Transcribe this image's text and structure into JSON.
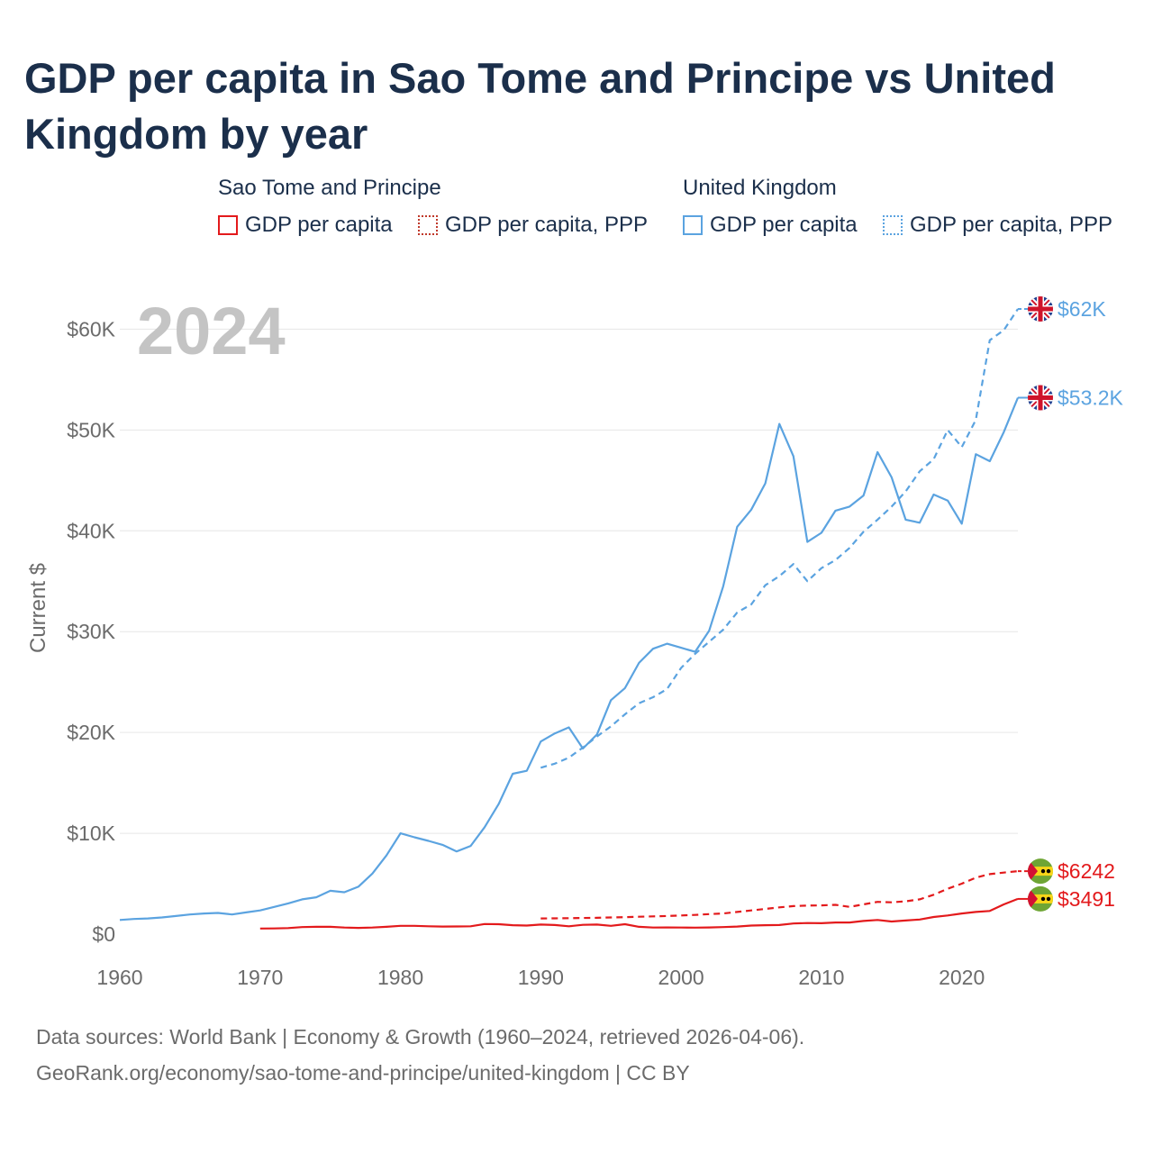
{
  "title": "GDP per capita in Sao Tome and Principe vs United Kingdom by year",
  "legend": {
    "groups": [
      {
        "name": "Sao Tome and Principe",
        "items": [
          {
            "label": "GDP per capita",
            "color": "#e31a1c",
            "style": "solid"
          },
          {
            "label": "GDP per capita, PPP",
            "color": "#c0392b",
            "style": "dotted"
          }
        ]
      },
      {
        "name": "United Kingdom",
        "items": [
          {
            "label": "GDP per capita",
            "color": "#5ba3e0",
            "style": "solid"
          },
          {
            "label": "GDP per capita, PPP",
            "color": "#5ba3e0",
            "style": "dotted"
          }
        ]
      }
    ]
  },
  "year_label": "2024",
  "footer": {
    "line1": "Data sources: World Bank | Economy & Growth (1960–2024, retrieved 2026-04-06).",
    "line2": "GeoRank.org/economy/sao-tome-and-principe/united-kingdom | CC BY"
  },
  "chart_data": {
    "type": "line",
    "title": "GDP per capita in Sao Tome and Principe vs United Kingdom by year",
    "ylabel": "Current $",
    "xlabel": "",
    "xlim": [
      1960,
      2024
    ],
    "ylim": [
      0,
      62000
    ],
    "x_ticks": [
      1960,
      1970,
      1980,
      1990,
      2000,
      2010,
      2020
    ],
    "y_ticks": [
      {
        "value": 0,
        "label": "$0"
      },
      {
        "value": 10000,
        "label": "$10K"
      },
      {
        "value": 20000,
        "label": "$20K"
      },
      {
        "value": 30000,
        "label": "$30K"
      },
      {
        "value": 40000,
        "label": "$40K"
      },
      {
        "value": 50000,
        "label": "$50K"
      },
      {
        "value": 60000,
        "label": "$60K"
      }
    ],
    "series": [
      {
        "name": "United Kingdom GDP per capita",
        "color": "#5ba3e0",
        "dash": "solid",
        "end_label": "$53.2K",
        "flag": "uk",
        "x": [
          1960,
          1961,
          1962,
          1963,
          1964,
          1965,
          1966,
          1967,
          1968,
          1969,
          1970,
          1971,
          1972,
          1973,
          1974,
          1975,
          1976,
          1977,
          1978,
          1979,
          1980,
          1981,
          1982,
          1983,
          1984,
          1985,
          1986,
          1987,
          1988,
          1989,
          1990,
          1991,
          1992,
          1993,
          1994,
          1995,
          1996,
          1997,
          1998,
          1999,
          2000,
          2001,
          2002,
          2003,
          2004,
          2005,
          2006,
          2007,
          2008,
          2009,
          2010,
          2011,
          2012,
          2013,
          2014,
          2015,
          2016,
          2017,
          2018,
          2019,
          2020,
          2021,
          2022,
          2023,
          2024
        ],
        "values": [
          1400,
          1500,
          1550,
          1650,
          1800,
          1950,
          2050,
          2100,
          1950,
          2150,
          2350,
          2700,
          3050,
          3450,
          3650,
          4300,
          4150,
          4700,
          6000,
          7800,
          10000,
          9600,
          9250,
          8850,
          8200,
          8750,
          10600,
          12900,
          15900,
          16200,
          19100,
          19900,
          20500,
          18400,
          19800,
          23200,
          24400,
          26900,
          28300,
          28800,
          28400,
          28000,
          30100,
          34500,
          40400,
          42100,
          44700,
          50600,
          47400,
          38900,
          39800,
          42000,
          42400,
          43500,
          47800,
          45300,
          41100,
          40800,
          43600,
          43000,
          40700,
          47600,
          46900,
          49800,
          53200
        ]
      },
      {
        "name": "United Kingdom GDP per capita, PPP",
        "color": "#5ba3e0",
        "dash": "dashed",
        "end_label": "$62K",
        "flag": "uk",
        "x": [
          1990,
          1991,
          1992,
          1993,
          1994,
          1995,
          1996,
          1997,
          1998,
          1999,
          2000,
          2001,
          2002,
          2003,
          2004,
          2005,
          2006,
          2007,
          2008,
          2009,
          2010,
          2011,
          2012,
          2013,
          2014,
          2015,
          2016,
          2017,
          2018,
          2019,
          2020,
          2021,
          2022,
          2023,
          2024
        ],
        "values": [
          16500,
          16900,
          17500,
          18500,
          19600,
          20600,
          21800,
          22900,
          23500,
          24300,
          26400,
          27800,
          29000,
          30200,
          31900,
          32700,
          34600,
          35500,
          36700,
          35000,
          36300,
          37100,
          38300,
          39900,
          41100,
          42400,
          43900,
          45900,
          47100,
          50000,
          48300,
          51000,
          58900,
          59900,
          62000
        ]
      },
      {
        "name": "Sao Tome and Principe GDP per capita",
        "color": "#e31a1c",
        "dash": "solid",
        "end_label": "$3491",
        "flag": "stp",
        "x": [
          1970,
          1971,
          1972,
          1973,
          1974,
          1975,
          1976,
          1977,
          1978,
          1979,
          1980,
          1981,
          1982,
          1983,
          1984,
          1985,
          1986,
          1987,
          1988,
          1989,
          1990,
          1991,
          1992,
          1993,
          1994,
          1995,
          1996,
          1997,
          1998,
          1999,
          2000,
          2001,
          2002,
          2003,
          2004,
          2005,
          2006,
          2007,
          2008,
          2009,
          2010,
          2011,
          2012,
          2013,
          2014,
          2015,
          2016,
          2017,
          2018,
          2019,
          2020,
          2021,
          2022,
          2023,
          2024
        ],
        "values": [
          550,
          560,
          600,
          700,
          720,
          720,
          650,
          620,
          650,
          720,
          820,
          820,
          780,
          750,
          760,
          780,
          1000,
          980,
          880,
          850,
          950,
          900,
          780,
          920,
          950,
          820,
          980,
          720,
          650,
          660,
          650,
          640,
          660,
          700,
          750,
          850,
          880,
          900,
          1050,
          1100,
          1080,
          1150,
          1150,
          1300,
          1400,
          1250,
          1350,
          1450,
          1700,
          1850,
          2050,
          2200,
          2300,
          2950,
          3491
        ]
      },
      {
        "name": "Sao Tome and Principe GDP per capita, PPP",
        "color": "#e31a1c",
        "dash": "dashed",
        "end_label": "$6242",
        "flag": "stp",
        "x": [
          1990,
          1991,
          1992,
          1993,
          1994,
          1995,
          1996,
          1997,
          1998,
          1999,
          2000,
          2001,
          2002,
          2003,
          2004,
          2005,
          2006,
          2007,
          2008,
          2009,
          2010,
          2011,
          2012,
          2013,
          2014,
          2015,
          2016,
          2017,
          2018,
          2019,
          2020,
          2021,
          2022,
          2023,
          2024
        ],
        "values": [
          1550,
          1560,
          1580,
          1600,
          1620,
          1650,
          1680,
          1720,
          1760,
          1800,
          1850,
          1900,
          1980,
          2050,
          2200,
          2350,
          2500,
          2650,
          2780,
          2830,
          2850,
          2900,
          2700,
          2950,
          3200,
          3150,
          3250,
          3450,
          3900,
          4500,
          5000,
          5600,
          5950,
          6100,
          6242
        ]
      }
    ]
  }
}
